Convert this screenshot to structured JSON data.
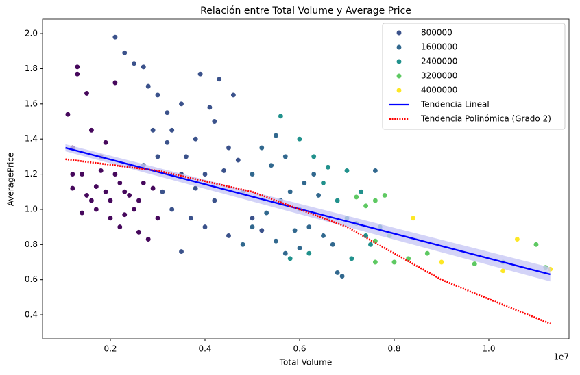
{
  "chart_data": {
    "type": "scatter",
    "title": "Relación entre Total Volume y Average Price",
    "x_label": "Total Volume",
    "y_label": "AveragePrice",
    "x_offset_label": "1e7",
    "xlim": [
      0.0565,
      1.1696
    ],
    "ylim": [
      0.264,
      2.082
    ],
    "xticks": [
      0.2,
      0.4,
      0.6,
      0.8,
      {
        "value": 1,
        "label": "1.0"
      }
    ],
    "yticks": [
      0.4,
      0.6,
      0.8,
      {
        "value": 1,
        "label": "1.0"
      },
      1.2,
      1.4,
      1.6,
      1.8,
      {
        "value": 2,
        "label": "2.0"
      }
    ],
    "legend": "upper right",
    "series": [
      {
        "color": "#46085c",
        "x": [
          0.11,
          0.12,
          0.12,
          0.13,
          0.13,
          0.14,
          0.15,
          0.15,
          0.16,
          0.17,
          0.17,
          0.18,
          0.19,
          0.2,
          0.2,
          0.21,
          0.22,
          0.22,
          0.23,
          0.24,
          0.25,
          0.26,
          0.27,
          0.28,
          0.16,
          0.19,
          0.14,
          0.18,
          0.24,
          0.29,
          0.3,
          0.21,
          0.26,
          0.12,
          0.23
        ],
        "values": [
          1.54,
          1.35,
          1.12,
          1.81,
          1.77,
          1.2,
          1.08,
          1.66,
          1.05,
          1.0,
          1.13,
          1.3,
          1.1,
          1.05,
          0.95,
          1.2,
          1.15,
          0.9,
          1.1,
          1.25,
          1.0,
          0.87,
          1.15,
          0.83,
          1.45,
          1.38,
          0.98,
          1.22,
          1.08,
          1.12,
          0.95,
          1.72,
          1.05,
          1.2,
          0.97
        ]
      },
      {
        "name": "800000",
        "color": "#3b528b",
        "x": [
          0.21,
          0.23,
          0.25,
          0.27,
          0.28,
          0.3,
          0.32,
          0.33,
          0.35,
          0.36,
          0.38,
          0.39,
          0.4,
          0.42,
          0.43,
          0.45,
          0.46,
          0.3,
          0.31,
          0.33,
          0.35,
          0.37,
          0.4,
          0.42,
          0.45,
          0.48,
          0.5,
          0.52,
          0.35,
          0.29,
          0.41,
          0.38,
          0.44,
          0.47,
          0.27,
          0.32
        ],
        "values": [
          1.98,
          1.89,
          1.83,
          1.81,
          1.7,
          1.65,
          1.55,
          1.45,
          1.6,
          1.3,
          1.4,
          1.77,
          1.2,
          1.5,
          1.74,
          1.35,
          1.65,
          1.3,
          1.1,
          1.0,
          1.2,
          0.95,
          0.9,
          1.05,
          0.85,
          1.1,
          0.95,
          0.88,
          0.76,
          1.45,
          1.58,
          1.12,
          1.22,
          1.28,
          1.25,
          1.38
        ]
      },
      {
        "name": "1600000",
        "color": "#31688e",
        "x": [
          0.5,
          0.52,
          0.55,
          0.57,
          0.58,
          0.6,
          0.62,
          0.63,
          0.65,
          0.66,
          0.68,
          0.69,
          0.55,
          0.57,
          0.6,
          0.53,
          0.48,
          0.56,
          0.64,
          0.59,
          0.61,
          0.67,
          0.54,
          0.5,
          0.76
        ],
        "values": [
          1.2,
          1.35,
          1.42,
          1.3,
          1.1,
          1.0,
          0.9,
          1.2,
          0.85,
          0.95,
          0.64,
          0.62,
          0.82,
          0.75,
          0.78,
          0.98,
          0.8,
          1.05,
          1.08,
          0.88,
          1.15,
          0.8,
          1.25,
          0.9,
          1.22
        ]
      },
      {
        "name": "2400000",
        "color": "#21918c",
        "x": [
          0.56,
          0.6,
          0.63,
          0.66,
          0.7,
          0.68,
          0.7,
          0.72,
          0.74,
          0.75,
          0.62,
          0.65,
          0.73,
          0.71,
          0.77,
          0.58
        ],
        "values": [
          1.53,
          1.4,
          1.3,
          1.24,
          1.22,
          1.05,
          0.95,
          0.92,
          0.85,
          0.8,
          0.75,
          1.15,
          1.1,
          0.72,
          0.9,
          0.72
        ]
      },
      {
        "name": "3200000",
        "color": "#5ec962",
        "x": [
          0.72,
          0.74,
          0.76,
          0.78,
          0.76,
          0.8,
          0.83,
          0.87,
          0.97,
          1.03,
          1.1,
          1.12,
          0.76,
          0.79
        ],
        "values": [
          1.07,
          1.02,
          1.05,
          1.08,
          0.82,
          0.7,
          0.72,
          0.75,
          0.69,
          0.7,
          0.8,
          0.67,
          0.7,
          0.85
        ]
      },
      {
        "name": "4000000",
        "color": "#fde725",
        "x": [
          0.84,
          0.9,
          1.03,
          1.06,
          1.13
        ],
        "values": [
          0.95,
          0.7,
          0.65,
          0.83,
          0.66
        ]
      },
      {
        "name": "Tendencia Lineal",
        "type": "line",
        "color": "#0000ff",
        "linestyle": "solid",
        "x": [
          0.105,
          1.13
        ],
        "values": [
          1.35,
          0.63
        ],
        "band_lower": [
          1.33,
          0.59
        ],
        "band_upper": [
          1.37,
          0.67
        ],
        "band_color": "#c8c8f5"
      },
      {
        "name": "Tendencia Polinómica (Grado 2)",
        "type": "line",
        "color": "#ff0000",
        "linestyle": "dotted",
        "x": [
          0.105,
          0.3,
          0.5,
          0.6,
          0.7,
          0.8,
          0.9,
          1.0,
          1.13
        ],
        "values": [
          1.285,
          1.22,
          1.1,
          1.0,
          0.9,
          0.75,
          0.6,
          0.49,
          0.35
        ]
      }
    ]
  }
}
